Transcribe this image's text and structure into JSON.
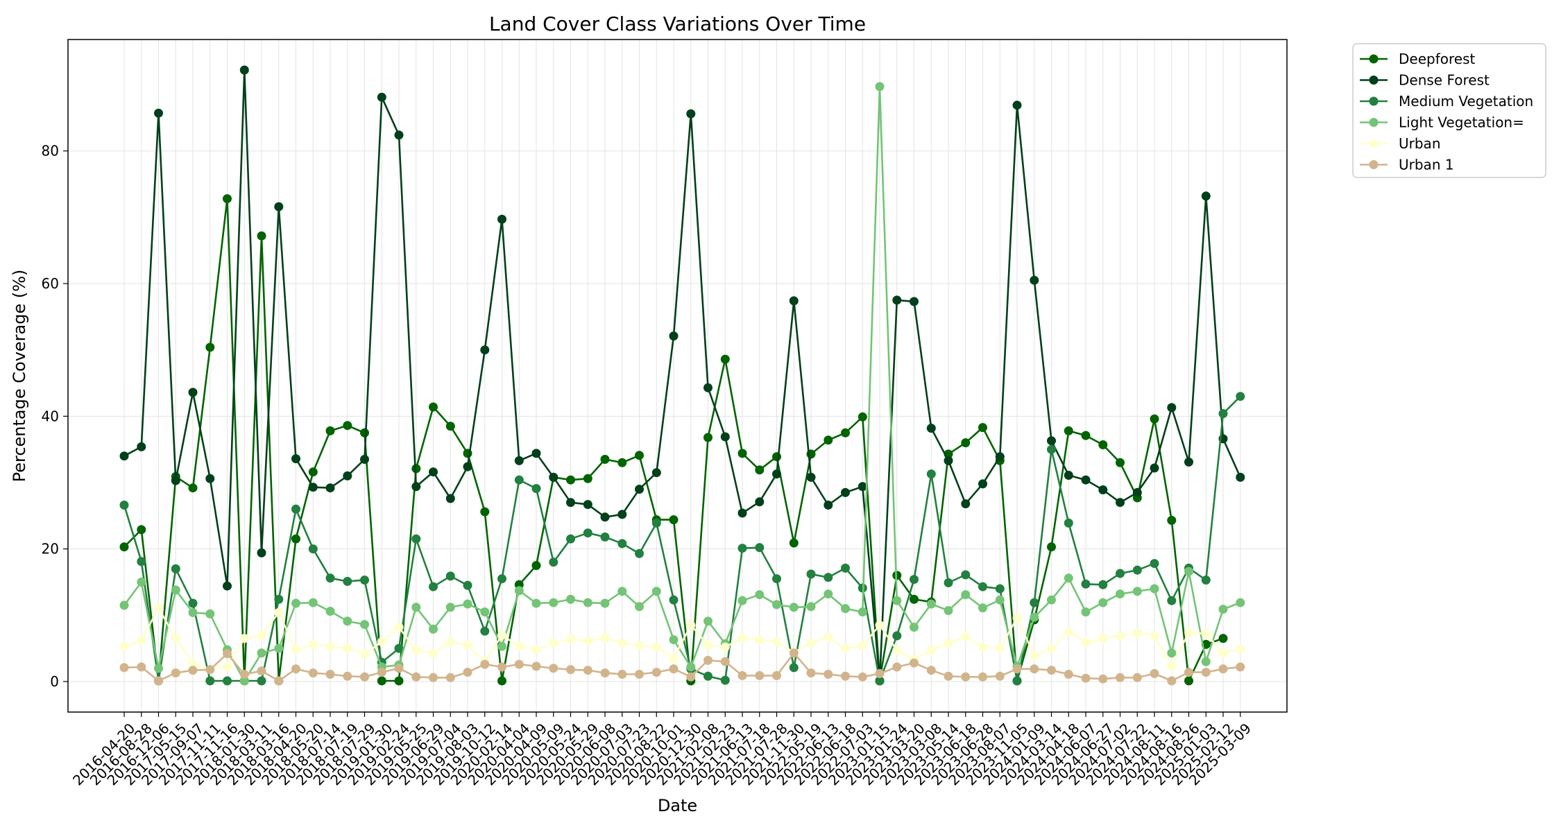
{
  "chart_data": {
    "type": "line",
    "title": "Land Cover Class Variations Over Time",
    "xlabel": "Date",
    "ylabel": "Percentage Coverage (%)",
    "ylim": [
      -4.6,
      96.8
    ],
    "yticks": [
      0,
      20,
      40,
      60,
      80
    ],
    "grid": true,
    "legend_position": "outside-top-right",
    "x": [
      "2016-04-20",
      "2016-08-28",
      "2016-12-06",
      "2017-05-15",
      "2017-09-07",
      "2017-11-11",
      "2017-11-16",
      "2018-01-30",
      "2018-03-11",
      "2018-03-16",
      "2018-04-20",
      "2018-05-20",
      "2018-07-14",
      "2018-07-19",
      "2018-07-29",
      "2019-01-30",
      "2019-02-24",
      "2019-05-25",
      "2019-06-29",
      "2019-07-04",
      "2019-08-03",
      "2019-10-12",
      "2020-02-14",
      "2020-04-04",
      "2020-04-09",
      "2020-05-09",
      "2020-05-24",
      "2020-05-29",
      "2020-06-08",
      "2020-07-03",
      "2020-07-23",
      "2020-08-22",
      "2020-10-01",
      "2020-12-30",
      "2021-02-08",
      "2021-02-23",
      "2021-06-13",
      "2021-07-18",
      "2021-07-28",
      "2021-11-30",
      "2022-05-19",
      "2022-06-13",
      "2022-06-18",
      "2022-07-03",
      "2023-01-15",
      "2023-01-24",
      "2023-03-20",
      "2023-03-08",
      "2023-05-14",
      "2023-06-18",
      "2023-06-28",
      "2023-08-07",
      "2023-11-05",
      "2024-01-09",
      "2024-03-14",
      "2024-04-18",
      "2024-06-07",
      "2024-06-27",
      "2024-07-02",
      "2024-07-22",
      "2024-08-11",
      "2024-08-16",
      "2024-08-26",
      "2025-01-03",
      "2025-02-12",
      "2025-03-09"
    ],
    "x_tick_labels": [
      "2016-04-20",
      "2016-08-28",
      "2016-12-06",
      "2017-05-15",
      "2017-09-07",
      "2017-11-11",
      "2017-11-16",
      "2018-01-30",
      "2018-03-11",
      "2018-03-16",
      "2018-04-20",
      "2018-05-20",
      "2018-07-14",
      "2018-07-19",
      "2018-07-29",
      "2019-01-30",
      "2019-02-24",
      "2019-05-25",
      "2019-06-29",
      "2019-07-04",
      "2019-08-03",
      "2019-10-12",
      "2020-02-14",
      "2020-04-04",
      "2020-04-09",
      "2020-05-09",
      "2020-05-24",
      "2020-05-29",
      "2020-06-08",
      "2020-07-03",
      "2020-07-23",
      "2020-08-22",
      "2020-10-01",
      "2020-12-30",
      "2021-02-08",
      "2021-02-23",
      "2021-06-13",
      "2021-07-18",
      "2021-07-28",
      "2021-11-30",
      "2022-05-19",
      "2022-06-13",
      "2022-06-18",
      "2022-07-03",
      "2023-01-15",
      "2023-01-24",
      "2023-03-20",
      "2023-03-08",
      "2023-05-14",
      "2023-06-18",
      "2023-06-28",
      "2023-08-07",
      "2023-11-05",
      "2024-01-09",
      "2024-03-14",
      "2024-04-18",
      "2024-06-07",
      "2024-06-27",
      "2024-07-02",
      "2024-07-22",
      "2024-08-11",
      "2024-08-16",
      "2024-08-26",
      "2025-01-03",
      "2025-02-12",
      "2025-03-09"
    ],
    "series": [
      {
        "name": "Deepforest",
        "color": "#006400",
        "values": [
          20.3,
          22.9,
          0.1,
          30.9,
          29.2,
          50.4,
          72.8,
          0.1,
          67.2,
          0.1,
          21.5,
          31.6,
          37.8,
          38.6,
          37.5,
          0.1,
          0.1,
          32.1,
          41.4,
          38.5,
          34.4,
          25.6,
          0.1,
          14.6,
          17.5,
          30.8,
          30.4,
          30.6,
          33.5,
          33.0,
          34.1,
          24.4,
          24.4,
          0.1,
          36.8,
          48.6,
          34.4,
          31.9,
          33.9,
          20.9,
          34.3,
          36.4,
          37.5,
          39.9,
          0.1,
          16.0,
          12.4,
          12.0,
          34.3,
          36.0,
          38.3,
          33.3,
          0.1,
          9.3,
          20.3,
          37.8,
          37.1,
          35.7,
          33.0,
          27.7,
          39.6,
          24.3,
          0.1,
          5.6,
          6.5,
          null
        ]
      },
      {
        "name": "Dense Forest",
        "color": "#00401a",
        "values": [
          34.0,
          35.4,
          85.7,
          30.3,
          43.6,
          30.6,
          14.4,
          92.2,
          19.4,
          71.6,
          33.6,
          29.3,
          29.2,
          31.0,
          33.5,
          88.1,
          82.4,
          29.4,
          31.6,
          27.6,
          32.4,
          50.0,
          69.7,
          33.3,
          34.4,
          30.8,
          27.0,
          26.7,
          24.8,
          25.2,
          29.0,
          31.5,
          52.1,
          85.6,
          44.3,
          36.9,
          25.4,
          27.1,
          31.3,
          57.4,
          30.8,
          26.6,
          28.5,
          29.4,
          0.1,
          57.5,
          57.3,
          38.2,
          33.3,
          26.8,
          29.8,
          33.9,
          86.9,
          60.5,
          36.3,
          31.1,
          30.4,
          28.9,
          27.0,
          28.5,
          32.2,
          41.3,
          33.1,
          73.2,
          36.6,
          30.8
        ]
      },
      {
        "name": "Medium Vegetation",
        "color": "#228040",
        "values": [
          26.6,
          18.1,
          0.1,
          17.0,
          11.8,
          0.1,
          0.1,
          0.1,
          0.1,
          12.4,
          26.0,
          20.0,
          15.6,
          15.1,
          15.3,
          2.9,
          5.0,
          21.5,
          14.3,
          15.9,
          14.5,
          7.6,
          15.5,
          30.4,
          29.1,
          18.0,
          21.5,
          22.4,
          21.8,
          20.8,
          19.3,
          23.9,
          12.3,
          1.9,
          0.8,
          0.2,
          20.1,
          20.2,
          15.5,
          2.1,
          16.2,
          15.7,
          17.1,
          14.1,
          0.1,
          6.9,
          15.4,
          31.3,
          14.9,
          16.1,
          14.3,
          14.0,
          0.1,
          11.9,
          35.0,
          23.9,
          14.7,
          14.6,
          16.3,
          16.8,
          17.8,
          12.2,
          17.1,
          15.3,
          40.4,
          43.0
        ]
      },
      {
        "name": "Light Vegetation=",
        "color": "#74c476",
        "values": [
          11.5,
          15.0,
          2.0,
          13.8,
          10.4,
          10.2,
          4.8,
          0.1,
          4.3,
          5.0,
          11.8,
          11.9,
          10.6,
          9.1,
          8.6,
          2.2,
          2.5,
          11.2,
          7.9,
          11.2,
          11.7,
          10.5,
          5.3,
          13.7,
          11.8,
          11.9,
          12.4,
          11.9,
          11.8,
          13.6,
          11.3,
          13.6,
          6.3,
          2.2,
          9.1,
          5.7,
          12.2,
          13.1,
          11.6,
          11.2,
          11.3,
          13.2,
          11.0,
          10.5,
          89.7,
          12.2,
          8.2,
          11.7,
          10.7,
          13.1,
          11.1,
          12.3,
          2.3,
          9.7,
          12.3,
          15.6,
          10.5,
          11.9,
          13.2,
          13.6,
          14.0,
          4.3,
          16.6,
          3.0,
          10.9,
          11.9
        ]
      },
      {
        "name": "Urban",
        "color": "#ffffcc",
        "values": [
          5.3,
          6.2,
          11.1,
          6.5,
          2.7,
          1.8,
          2.2,
          6.5,
          7.0,
          10.4,
          4.8,
          5.6,
          5.3,
          5.0,
          4.1,
          6.0,
          8.2,
          4.7,
          4.2,
          6.0,
          5.5,
          3.0,
          7.0,
          5.3,
          4.8,
          5.9,
          6.4,
          6.1,
          6.6,
          5.8,
          5.4,
          5.2,
          3.5,
          8.5,
          5.5,
          5.2,
          6.6,
          6.3,
          6.0,
          4.4,
          5.8,
          6.7,
          5.0,
          5.4,
          8.5,
          4.7,
          3.4,
          4.7,
          5.8,
          6.8,
          5.2,
          5.0,
          9.6,
          3.9,
          5.0,
          7.5,
          5.9,
          6.5,
          6.9,
          7.3,
          6.9,
          2.3,
          7.4,
          7.2,
          4.3,
          4.9
        ]
      },
      {
        "name": "Urban 1",
        "color": "#d2b48c",
        "values": [
          2.1,
          2.2,
          0.1,
          1.3,
          1.7,
          1.8,
          4.2,
          1.1,
          1.6,
          0.1,
          1.9,
          1.3,
          1.1,
          0.8,
          0.7,
          1.4,
          2.0,
          0.7,
          0.6,
          0.6,
          1.4,
          2.6,
          2.2,
          2.6,
          2.3,
          2.0,
          1.8,
          1.7,
          1.3,
          1.1,
          1.1,
          1.4,
          1.9,
          0.7,
          3.2,
          3.0,
          0.9,
          0.9,
          0.9,
          4.3,
          1.3,
          1.1,
          0.8,
          0.7,
          1.2,
          2.2,
          2.8,
          1.7,
          0.8,
          0.7,
          0.7,
          0.8,
          1.9,
          1.9,
          1.7,
          1.1,
          0.5,
          0.4,
          0.6,
          0.6,
          1.2,
          0.1,
          1.4,
          1.4,
          1.9,
          2.2
        ]
      }
    ]
  }
}
